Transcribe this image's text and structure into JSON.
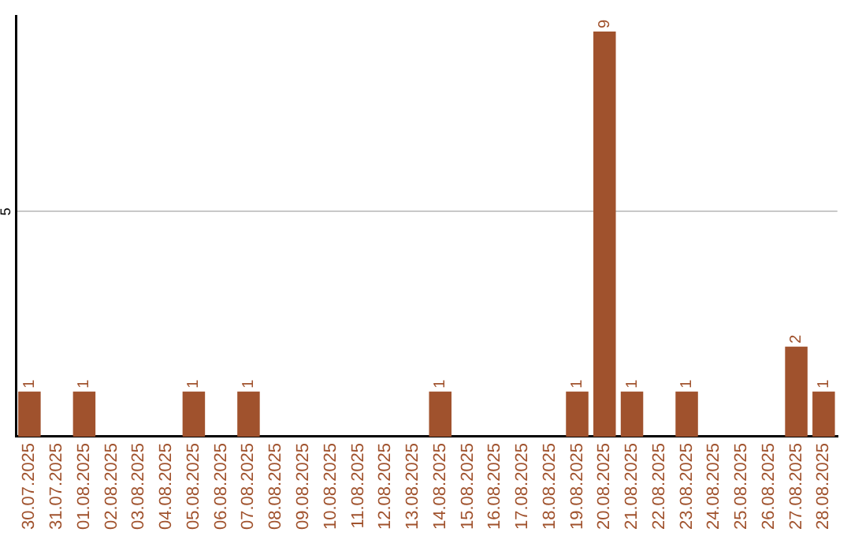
{
  "chart_data": {
    "type": "bar",
    "categories": [
      "30.07.2025",
      "31.07.2025",
      "01.08.2025",
      "02.08.2025",
      "03.08.2025",
      "04.08.2025",
      "05.08.2025",
      "06.08.2025",
      "07.08.2025",
      "08.08.2025",
      "09.08.2025",
      "10.08.2025",
      "11.08.2025",
      "12.08.2025",
      "13.08.2025",
      "14.08.2025",
      "15.08.2025",
      "16.08.2025",
      "17.08.2025",
      "18.08.2025",
      "19.08.2025",
      "20.08.2025",
      "21.08.2025",
      "22.08.2025",
      "23.08.2025",
      "24.08.2025",
      "25.08.2025",
      "26.08.2025",
      "27.08.2025",
      "28.08.2025"
    ],
    "values": [
      1,
      0,
      1,
      0,
      0,
      0,
      1,
      0,
      1,
      0,
      0,
      0,
      0,
      0,
      0,
      1,
      0,
      0,
      0,
      0,
      1,
      9,
      1,
      0,
      1,
      0,
      0,
      0,
      2,
      1
    ],
    "value_labels": [
      "1",
      null,
      "1",
      null,
      null,
      null,
      "1",
      null,
      "1",
      null,
      null,
      null,
      null,
      null,
      null,
      "1",
      null,
      null,
      null,
      null,
      "1",
      "9",
      "1",
      null,
      "1",
      null,
      null,
      null,
      "2",
      "1"
    ],
    "color": "#a0522d",
    "ylim": [
      0,
      9.35
    ],
    "yticks": [
      5
    ],
    "grid": "y",
    "legend": false
  }
}
